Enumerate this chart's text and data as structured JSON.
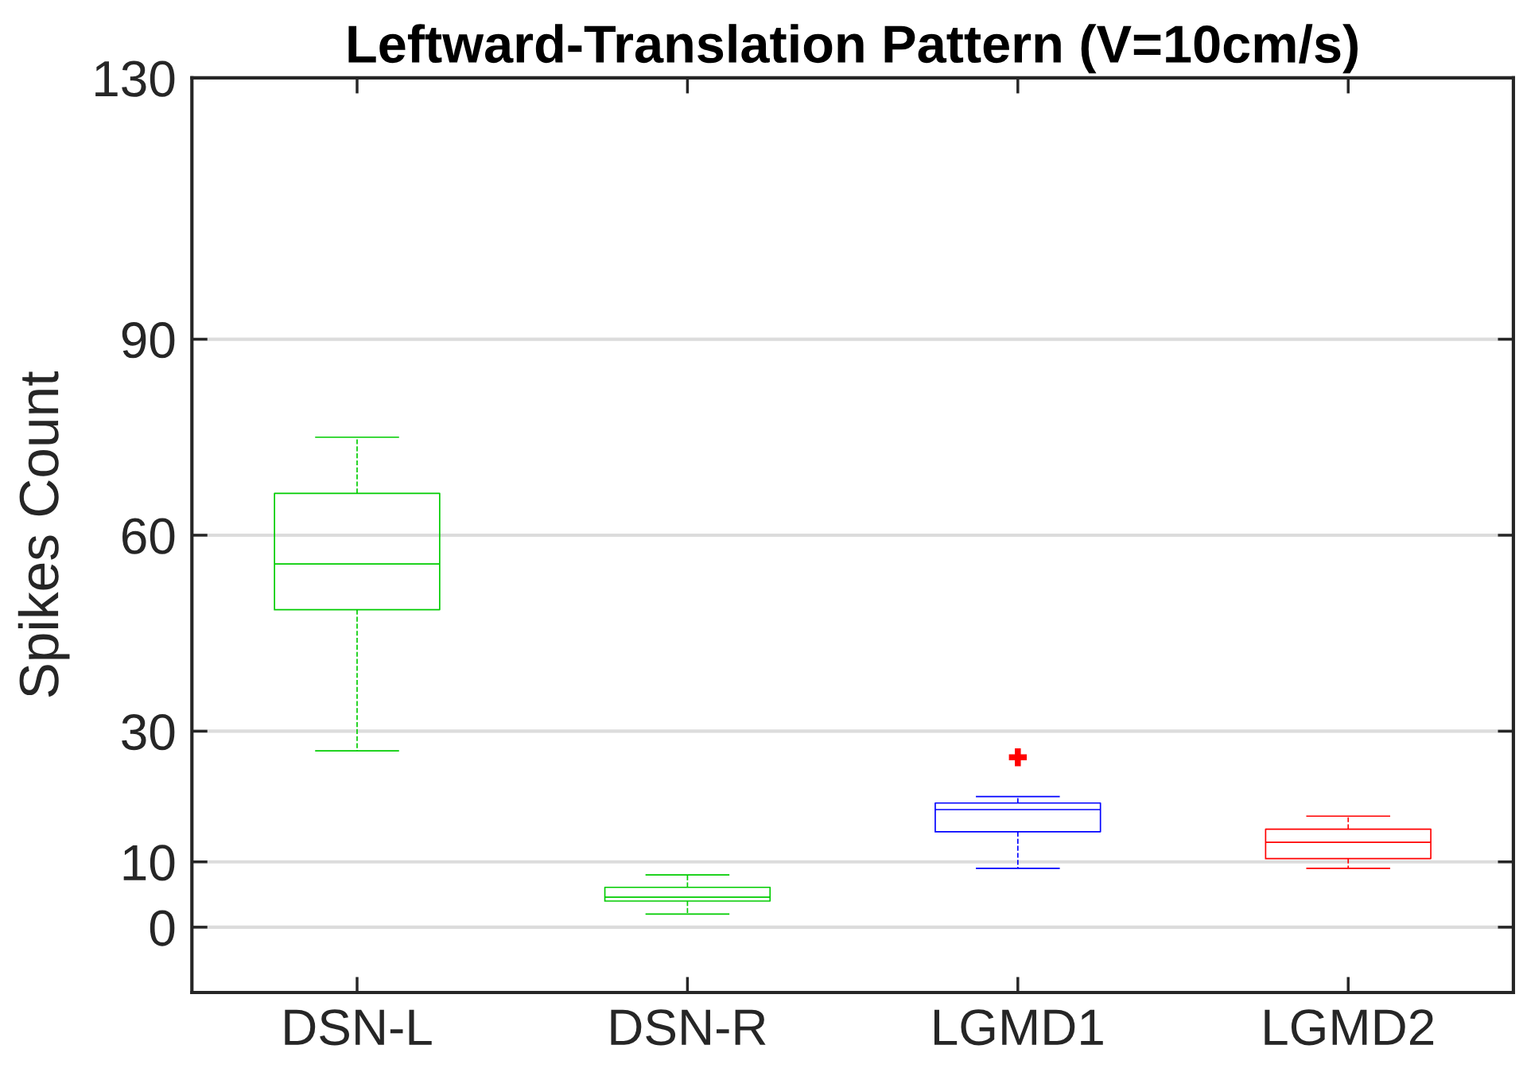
{
  "chart_data": {
    "type": "box",
    "title": "Leftward-Translation Pattern (V=10cm/s)",
    "ylabel": "Spikes Count",
    "categories": [
      "DSN-L",
      "DSN-R",
      "LGMD1",
      "LGMD2"
    ],
    "colors": [
      "#00cc00",
      "#00cc00",
      "#0000ff",
      "#ff0000"
    ],
    "boxes": [
      {
        "low": 27,
        "q1": 48.6,
        "median": 55.6,
        "q3": 66.4,
        "high": 75
      },
      {
        "low": 2,
        "q1": 4,
        "median": 4.6,
        "q3": 6.1,
        "high": 8
      },
      {
        "low": 9,
        "q1": 14.6,
        "median": 18,
        "q3": 19,
        "high": 20
      },
      {
        "low": 9,
        "q1": 10.5,
        "median": 13,
        "q3": 15,
        "high": 17
      }
    ],
    "series": [
      {
        "type": "scatter",
        "x": [
          "LGMD1"
        ],
        "values": [
          26
        ],
        "color": "#ff0000",
        "marker": "cross"
      }
    ],
    "ylim": [
      -10,
      130
    ],
    "yticks": [
      0,
      10,
      30,
      60,
      90,
      130
    ],
    "grid": "y",
    "line_style": "dashed"
  }
}
